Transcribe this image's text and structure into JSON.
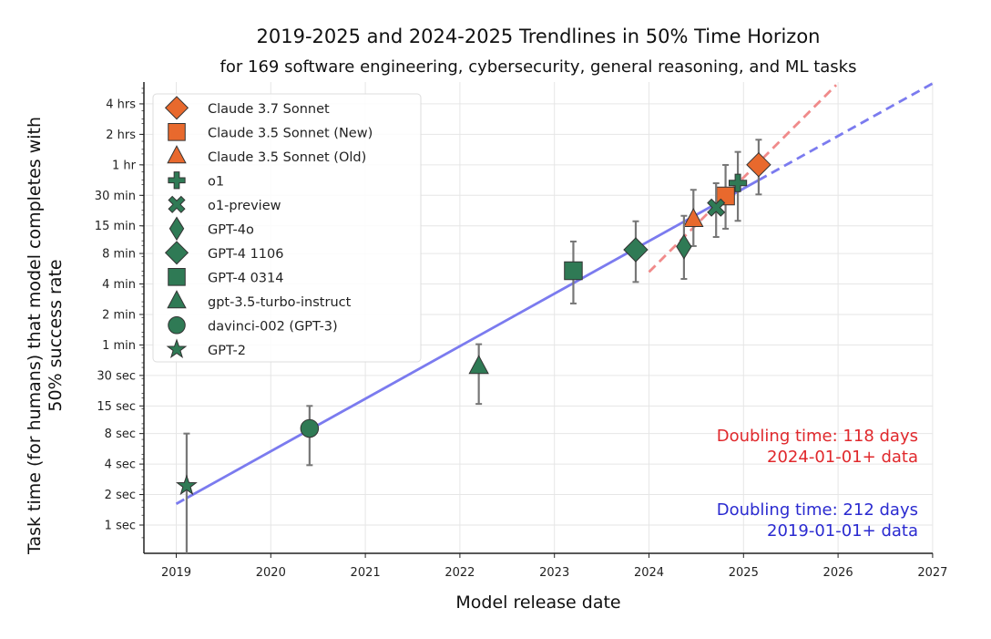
{
  "chart_data": {
    "type": "scatter",
    "title": "2019-2025 and 2024-2025 Trendlines in 50% Time Horizon",
    "subtitle": "for 169 software engineering, cybersecurity, general reasoning, and ML tasks",
    "xlabel": "Model release date",
    "ylabel": [
      "Task time (for humans) that model completes with",
      "50% success rate"
    ],
    "x_scale": "date (years)",
    "y_scale": "log",
    "xlim": [
      2018.66,
      2027
    ],
    "ylim_seconds": [
      0.52,
      23000
    ],
    "grid": true,
    "legend_position": "top-left",
    "x_ticks": [
      {
        "value": 2019,
        "label": "2019"
      },
      {
        "value": 2020,
        "label": "2020"
      },
      {
        "value": 2021,
        "label": "2021"
      },
      {
        "value": 2022,
        "label": "2022"
      },
      {
        "value": 2023,
        "label": "2023"
      },
      {
        "value": 2024,
        "label": "2024"
      },
      {
        "value": 2025,
        "label": "2025"
      },
      {
        "value": 2026,
        "label": "2026"
      },
      {
        "value": 2027,
        "label": "2027"
      }
    ],
    "y_ticks": [
      {
        "seconds": 1,
        "label": "1 sec"
      },
      {
        "seconds": 2,
        "label": "2 sec"
      },
      {
        "seconds": 4,
        "label": "4 sec"
      },
      {
        "seconds": 8,
        "label": "8 sec"
      },
      {
        "seconds": 15,
        "label": "15 sec"
      },
      {
        "seconds": 30,
        "label": "30 sec"
      },
      {
        "seconds": 60,
        "label": "1 min"
      },
      {
        "seconds": 120,
        "label": "2 min"
      },
      {
        "seconds": 240,
        "label": "4 min"
      },
      {
        "seconds": 480,
        "label": "8 min"
      },
      {
        "seconds": 900,
        "label": "15 min"
      },
      {
        "seconds": 1800,
        "label": "30 min"
      },
      {
        "seconds": 3600,
        "label": "1 hr"
      },
      {
        "seconds": 7200,
        "label": "2 hrs"
      },
      {
        "seconds": 14400,
        "label": "4 hrs"
      }
    ],
    "colors": {
      "anthropic": "#e8692d",
      "openai": "#2f7a55",
      "trend_all": "#7b7bef",
      "trend_recent": "#f08a8a",
      "ann_recent": "#e0282c",
      "ann_all": "#2a2ad0",
      "errorbar": "#777777"
    },
    "series": [
      {
        "name": "Claude 3.7 Sonnet",
        "marker": "diamond",
        "color": "anthropic",
        "x": 2025.16,
        "y_seconds": 3610,
        "ci": [
          1837,
          6370
        ]
      },
      {
        "name": "Claude 3.5 Sonnet (New)",
        "marker": "square",
        "color": "anthropic",
        "x": 2024.81,
        "y_seconds": 1773,
        "ci": [
          842,
          3590
        ]
      },
      {
        "name": "Claude 3.5 Sonnet (Old)",
        "marker": "triangle",
        "color": "anthropic",
        "x": 2024.47,
        "y_seconds": 1040,
        "ci": [
          568,
          2040
        ]
      },
      {
        "name": "o1",
        "marker": "plus",
        "color": "openai",
        "x": 2024.94,
        "y_seconds": 2385,
        "ci": [
          1008,
          4830
        ]
      },
      {
        "name": "o1-preview",
        "marker": "x",
        "color": "openai",
        "x": 2024.71,
        "y_seconds": 1362,
        "ci": [
          698,
          2370
        ]
      },
      {
        "name": "GPT-4o",
        "marker": "thin_diamond",
        "color": "openai",
        "x": 2024.37,
        "y_seconds": 560,
        "ci": [
          269,
          1130
        ]
      },
      {
        "name": "GPT-4 1106",
        "marker": "diamond",
        "color": "openai",
        "x": 2023.86,
        "y_seconds": 522,
        "ci": [
          251,
          998
        ]
      },
      {
        "name": "GPT-4 0314",
        "marker": "square",
        "color": "openai",
        "x": 2023.2,
        "y_seconds": 324,
        "ci": [
          154,
          630
        ]
      },
      {
        "name": "gpt-3.5-turbo-instruct",
        "marker": "triangle",
        "color": "openai",
        "x": 2022.2,
        "y_seconds": 36.8,
        "ci": [
          15.7,
          61
        ]
      },
      {
        "name": "davinci-002 (GPT-3)",
        "marker": "circle",
        "color": "openai",
        "x": 2020.41,
        "y_seconds": 9.0,
        "ci": [
          3.9,
          15
        ]
      },
      {
        "name": "GPT-2",
        "marker": "star",
        "color": "openai",
        "x": 2019.11,
        "y_seconds": 2.44,
        "ci": [
          0.3,
          8
        ]
      }
    ],
    "trendlines": [
      {
        "color": "trend_all",
        "x": [
          2019.0,
          2027.0
        ],
        "y_seconds": [
          1.62,
          22900
        ],
        "solid_range": [
          2019.11,
          2025.16
        ],
        "doubling_days": 212
      },
      {
        "color": "trend_recent",
        "x": [
          2024.0,
          2025.98
        ],
        "y_seconds": [
          315,
          22100
        ],
        "doubling_days": 118
      }
    ],
    "annotations": [
      {
        "lines": [
          "Doubling time: 118 days",
          "2024-01-01+ data"
        ],
        "color": "ann_recent"
      },
      {
        "lines": [
          "Doubling time: 212 days",
          "2019-01-01+ data"
        ],
        "color": "ann_all"
      }
    ]
  }
}
